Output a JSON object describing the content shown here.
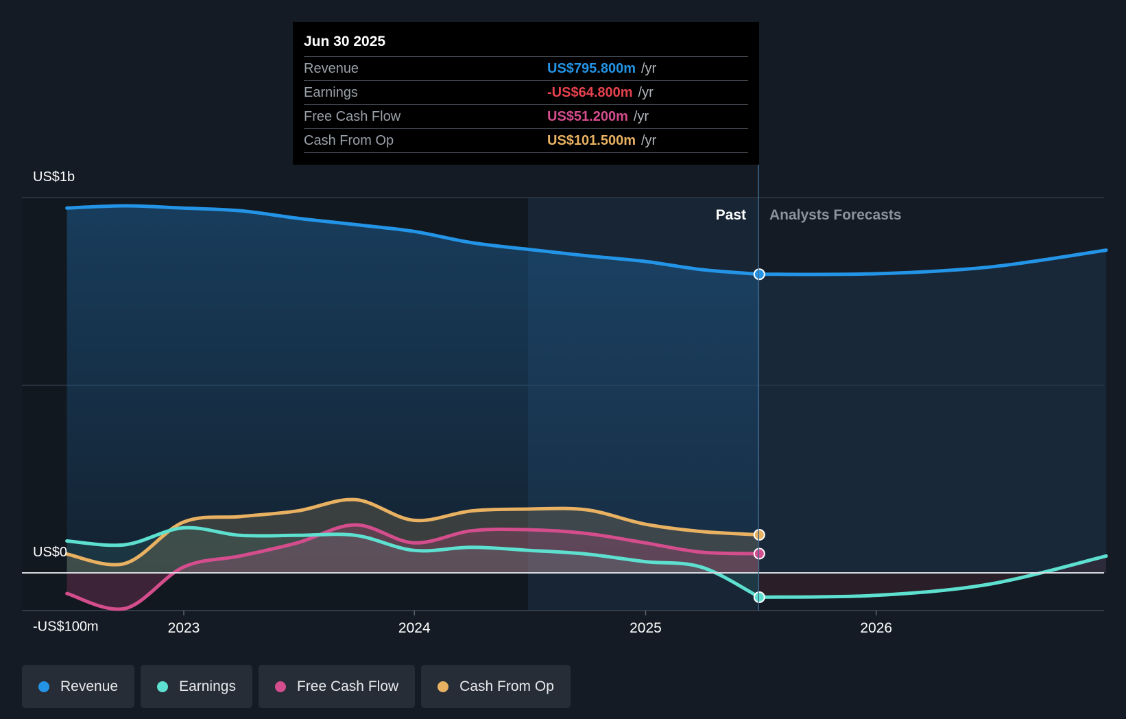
{
  "tooltip": {
    "date": "Jun 30 2025",
    "rows": [
      {
        "label": "Revenue",
        "value": "US$795.800m",
        "unit": "/yr",
        "color": "#2394e6"
      },
      {
        "label": "Earnings",
        "value": "-US$64.800m",
        "unit": "/yr",
        "color": "#e8424f"
      },
      {
        "label": "Free Cash Flow",
        "value": "US$51.200m",
        "unit": "/yr",
        "color": "#d44d8d"
      },
      {
        "label": "Cash From Op",
        "value": "US$101.500m",
        "unit": "/yr",
        "color": "#e9b162"
      }
    ]
  },
  "legend": [
    {
      "label": "Revenue",
      "color": "#2394e6"
    },
    {
      "label": "Earnings",
      "color": "#5ee0d0"
    },
    {
      "label": "Free Cash Flow",
      "color": "#d44d8d"
    },
    {
      "label": "Cash From Op",
      "color": "#e9b162"
    }
  ],
  "chart_data": {
    "type": "line",
    "y_tick_labels": [
      "US$1b",
      "US$0",
      "-US$100m"
    ],
    "x_tick_labels": [
      "2023",
      "2024",
      "2025",
      "2026"
    ],
    "ylim": [
      -200,
      1000
    ],
    "past_label": "Past",
    "forecast_label": "Analysts Forecasts",
    "past_end": "2025-06-30",
    "series": [
      {
        "name": "Revenue",
        "color": "#2394e6",
        "points": [
          [
            "2022-06-30",
            972
          ],
          [
            "2022-09-30",
            978
          ],
          [
            "2022-12-31",
            972
          ],
          [
            "2023-03-31",
            965
          ],
          [
            "2023-06-30",
            945
          ],
          [
            "2023-09-30",
            928
          ],
          [
            "2023-12-31",
            910
          ],
          [
            "2024-03-31",
            880
          ],
          [
            "2024-06-30",
            862
          ],
          [
            "2024-09-30",
            845
          ],
          [
            "2024-12-31",
            830
          ],
          [
            "2025-03-31",
            808
          ],
          [
            "2025-06-30",
            795.8
          ]
        ],
        "forecast": [
          [
            "2025-06-30",
            795.8
          ],
          [
            "2025-12-31",
            797
          ],
          [
            "2026-06-30",
            815
          ],
          [
            "2026-12-31",
            860
          ]
        ]
      },
      {
        "name": "Earnings",
        "color": "#5ee0d0",
        "points": [
          [
            "2022-06-30",
            85
          ],
          [
            "2022-09-30",
            75
          ],
          [
            "2022-12-31",
            120
          ],
          [
            "2023-03-31",
            100
          ],
          [
            "2023-06-30",
            100
          ],
          [
            "2023-09-30",
            100
          ],
          [
            "2023-12-31",
            60
          ],
          [
            "2024-03-31",
            68
          ],
          [
            "2024-06-30",
            60
          ],
          [
            "2024-09-30",
            50
          ],
          [
            "2024-12-31",
            30
          ],
          [
            "2025-03-31",
            15
          ],
          [
            "2025-06-30",
            -64.8
          ]
        ],
        "forecast": [
          [
            "2025-06-30",
            -64.8
          ],
          [
            "2025-12-31",
            -60
          ],
          [
            "2026-06-30",
            -30
          ],
          [
            "2026-12-31",
            45
          ]
        ]
      },
      {
        "name": "Free Cash Flow",
        "color": "#d44d8d",
        "points": [
          [
            "2022-06-30",
            -55
          ],
          [
            "2022-09-30",
            -95
          ],
          [
            "2022-12-31",
            15
          ],
          [
            "2023-03-31",
            45
          ],
          [
            "2023-06-30",
            80
          ],
          [
            "2023-09-30",
            128
          ],
          [
            "2023-12-31",
            80
          ],
          [
            "2024-03-31",
            112
          ],
          [
            "2024-06-30",
            115
          ],
          [
            "2024-09-30",
            105
          ],
          [
            "2024-12-31",
            80
          ],
          [
            "2025-03-31",
            55
          ],
          [
            "2025-06-30",
            51.2
          ]
        ]
      },
      {
        "name": "Cash From Op",
        "color": "#e9b162",
        "points": [
          [
            "2022-06-30",
            50
          ],
          [
            "2022-09-30",
            25
          ],
          [
            "2022-12-31",
            135
          ],
          [
            "2023-03-31",
            150
          ],
          [
            "2023-06-30",
            165
          ],
          [
            "2023-09-30",
            195
          ],
          [
            "2023-12-31",
            140
          ],
          [
            "2024-03-31",
            165
          ],
          [
            "2024-06-30",
            170
          ],
          [
            "2024-09-30",
            168
          ],
          [
            "2024-12-31",
            130
          ],
          [
            "2025-03-31",
            110
          ],
          [
            "2025-06-30",
            101.5
          ]
        ]
      }
    ]
  }
}
